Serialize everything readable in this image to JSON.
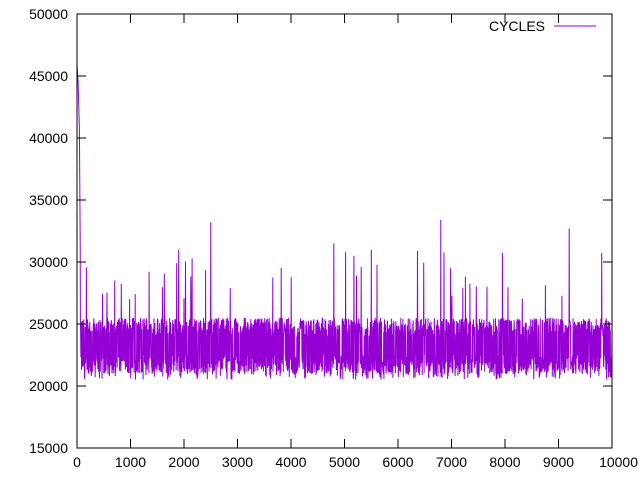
{
  "chart_data": {
    "type": "line",
    "title": "",
    "xlabel": "",
    "ylabel": "",
    "xlim": [
      0,
      10000
    ],
    "ylim": [
      15000,
      50000
    ],
    "x_ticks": [
      "0",
      "1000",
      "2000",
      "3000",
      "4000",
      "5000",
      "6000",
      "7000",
      "8000",
      "9000",
      "10000"
    ],
    "y_ticks": [
      "15000",
      "20000",
      "25000",
      "30000",
      "35000",
      "40000",
      "45000",
      "50000"
    ],
    "grid": false,
    "legend_position": "top-right",
    "series": [
      {
        "name": "CYCLES",
        "color": "#9400d3",
        "x_range": [
          0,
          10000
        ],
        "initial_spikes": [
          {
            "x": 0,
            "y": 46000
          },
          {
            "x": 20,
            "y": 44500
          },
          {
            "x": 45,
            "y": 40700
          },
          {
            "x": 60,
            "y": 31500
          }
        ],
        "band_min": 20500,
        "band_max": 26000,
        "typical_low": 21000,
        "typical_high": 25500,
        "notable_peaks": [
          {
            "x": 2500,
            "y": 33200
          },
          {
            "x": 6800,
            "y": 33400
          },
          {
            "x": 9200,
            "y": 32700
          },
          {
            "x": 5500,
            "y": 31000
          },
          {
            "x": 1900,
            "y": 31000
          },
          {
            "x": 4800,
            "y": 31500
          }
        ]
      }
    ]
  }
}
